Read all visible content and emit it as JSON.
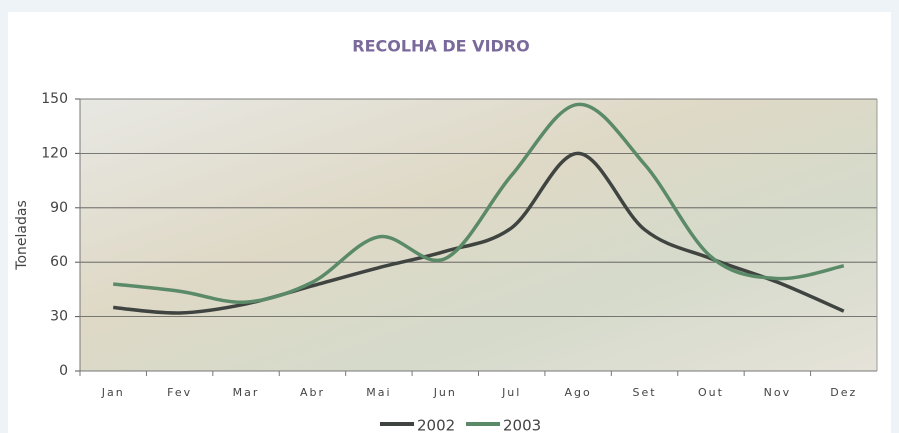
{
  "chart_data": {
    "type": "line",
    "title": "RECOLHA DE VIDRO",
    "y_label": "Toneladas",
    "categories": [
      "Jan",
      "Fev",
      "Mar",
      "Abr",
      "Mai",
      "Jun",
      "Jul",
      "Ago",
      "Set",
      "Out",
      "Nov",
      "Dez"
    ],
    "series": [
      {
        "name": "2002",
        "color": "#3f4441",
        "values": [
          35,
          32,
          37,
          47,
          57,
          66,
          79,
          120,
          78,
          62,
          49,
          33
        ]
      },
      {
        "name": "2003",
        "color": "#5a8a68",
        "values": [
          48,
          44,
          38,
          49,
          74,
          62,
          108,
          147,
          114,
          63,
          51,
          58
        ]
      }
    ],
    "ylim": [
      0,
      150
    ],
    "yticks": [
      0,
      30,
      60,
      90,
      120,
      150
    ],
    "grid": true,
    "smooth": true,
    "legend": "bottom"
  }
}
